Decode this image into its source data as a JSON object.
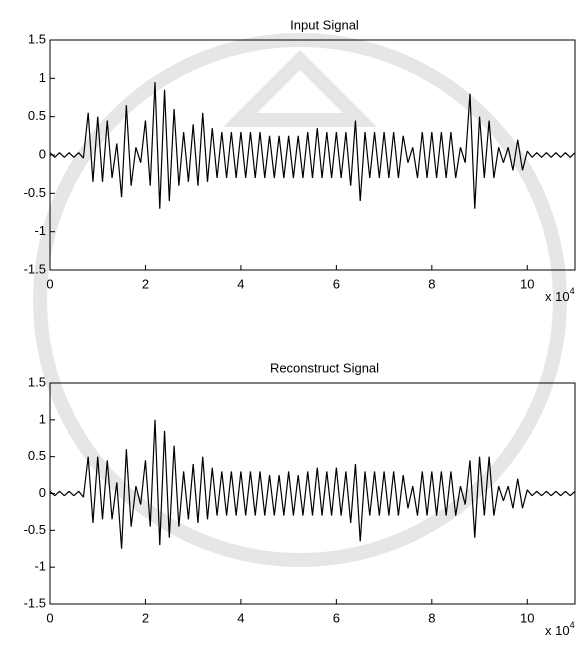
{
  "chart_data": [
    {
      "type": "line",
      "title": "Input Signal",
      "x": [
        0,
        0.1,
        0.2,
        0.3,
        0.4,
        0.5,
        0.6,
        0.7,
        0.8,
        0.9,
        1,
        1.1,
        1.2,
        1.3,
        1.4,
        1.5,
        1.6,
        1.7,
        1.8,
        1.9,
        2,
        2.1,
        2.2,
        2.3,
        2.4,
        2.5,
        2.6,
        2.7,
        2.8,
        2.9,
        3,
        3.1,
        3.2,
        3.3,
        3.4,
        3.5,
        3.6,
        3.7,
        3.8,
        3.9,
        4,
        4.1,
        4.2,
        4.3,
        4.4,
        4.5,
        4.6,
        4.7,
        4.8,
        4.9,
        5,
        5.1,
        5.2,
        5.3,
        5.4,
        5.5,
        5.6,
        5.7,
        5.8,
        5.9,
        6,
        6.1,
        6.2,
        6.3,
        6.4,
        6.5,
        6.6,
        6.7,
        6.8,
        6.9,
        7,
        7.1,
        7.2,
        7.3,
        7.4,
        7.5,
        7.6,
        7.7,
        7.8,
        7.9,
        8,
        8.1,
        8.2,
        8.3,
        8.4,
        8.5,
        8.6,
        8.7,
        8.8,
        8.9,
        9,
        9.1,
        9.2,
        9.3,
        9.4,
        9.5,
        9.6,
        9.7,
        9.8,
        9.9,
        10,
        10.1,
        10.2,
        10.3,
        10.4,
        10.5,
        10.6,
        10.7,
        10.8,
        10.9,
        11
      ],
      "series": [
        {
          "color": "#000000",
          "values": [
            0.03,
            -0.03,
            0.03,
            -0.03,
            0.03,
            -0.03,
            0.03,
            -0.04,
            0.55,
            -0.35,
            0.5,
            -0.35,
            0.45,
            -0.3,
            0.15,
            -0.55,
            0.65,
            -0.4,
            0.1,
            -0.1,
            0.45,
            -0.4,
            0.95,
            -0.7,
            0.85,
            -0.6,
            0.6,
            -0.4,
            0.3,
            -0.35,
            0.4,
            -0.4,
            0.55,
            -0.35,
            0.35,
            -0.3,
            0.3,
            -0.3,
            0.3,
            -0.3,
            0.3,
            -0.3,
            0.3,
            -0.3,
            0.3,
            -0.3,
            0.25,
            -0.3,
            0.25,
            -0.3,
            0.25,
            -0.3,
            0.25,
            -0.3,
            0.3,
            -0.3,
            0.35,
            -0.3,
            0.3,
            -0.3,
            0.3,
            -0.3,
            0.3,
            -0.4,
            0.45,
            -0.6,
            0.3,
            -0.3,
            0.3,
            -0.3,
            0.3,
            -0.3,
            0.3,
            -0.3,
            0.25,
            -0.1,
            0.1,
            -0.3,
            0.3,
            -0.3,
            0.3,
            -0.3,
            0.3,
            -0.3,
            0.3,
            -0.3,
            0.1,
            -0.1,
            0.8,
            -0.7,
            0.5,
            -0.3,
            0.45,
            -0.3,
            0.1,
            -0.1,
            0.1,
            -0.2,
            0.2,
            -0.2,
            0.05,
            -0.03,
            0.03,
            -0.03,
            0.03,
            -0.03,
            0.03,
            -0.03,
            0.03,
            -0.03,
            0.03
          ]
        }
      ],
      "xlim": [
        0,
        11
      ],
      "ylim": [
        -1.5,
        1.5
      ],
      "xticks": [
        0,
        2,
        4,
        6,
        8,
        10
      ],
      "yticks": [
        -1.5,
        -1,
        -0.5,
        0,
        0.5,
        1,
        1.5
      ],
      "x_multiplier": {
        "base": "x 10",
        "exponent": "4"
      }
    },
    {
      "type": "line",
      "title": "Reconstruct Signal",
      "x": [
        0,
        0.1,
        0.2,
        0.3,
        0.4,
        0.5,
        0.6,
        0.7,
        0.8,
        0.9,
        1,
        1.1,
        1.2,
        1.3,
        1.4,
        1.5,
        1.6,
        1.7,
        1.8,
        1.9,
        2,
        2.1,
        2.2,
        2.3,
        2.4,
        2.5,
        2.6,
        2.7,
        2.8,
        2.9,
        3,
        3.1,
        3.2,
        3.3,
        3.4,
        3.5,
        3.6,
        3.7,
        3.8,
        3.9,
        4,
        4.1,
        4.2,
        4.3,
        4.4,
        4.5,
        4.6,
        4.7,
        4.8,
        4.9,
        5,
        5.1,
        5.2,
        5.3,
        5.4,
        5.5,
        5.6,
        5.7,
        5.8,
        5.9,
        6,
        6.1,
        6.2,
        6.3,
        6.4,
        6.5,
        6.6,
        6.7,
        6.8,
        6.9,
        7,
        7.1,
        7.2,
        7.3,
        7.4,
        7.5,
        7.6,
        7.7,
        7.8,
        7.9,
        8,
        8.1,
        8.2,
        8.3,
        8.4,
        8.5,
        8.6,
        8.7,
        8.8,
        8.9,
        9,
        9.1,
        9.2,
        9.3,
        9.4,
        9.5,
        9.6,
        9.7,
        9.8,
        9.9,
        10,
        10.1,
        10.2,
        10.3,
        10.4,
        10.5,
        10.6,
        10.7,
        10.8,
        10.9,
        11
      ],
      "series": [
        {
          "color": "#000000",
          "values": [
            0.03,
            -0.03,
            0.03,
            -0.03,
            0.03,
            -0.03,
            0.03,
            -0.05,
            0.5,
            -0.4,
            0.5,
            -0.35,
            0.45,
            -0.35,
            0.15,
            -0.75,
            0.6,
            -0.45,
            0.1,
            -0.15,
            0.45,
            -0.45,
            1.0,
            -0.7,
            0.85,
            -0.6,
            0.65,
            -0.45,
            0.3,
            -0.35,
            0.4,
            -0.4,
            0.5,
            -0.35,
            0.35,
            -0.3,
            0.3,
            -0.3,
            0.3,
            -0.3,
            0.3,
            -0.3,
            0.3,
            -0.3,
            0.3,
            -0.3,
            0.25,
            -0.3,
            0.25,
            -0.3,
            0.3,
            -0.3,
            0.25,
            -0.3,
            0.3,
            -0.3,
            0.35,
            -0.3,
            0.3,
            -0.3,
            0.35,
            -0.3,
            0.3,
            -0.4,
            0.4,
            -0.65,
            0.3,
            -0.3,
            0.3,
            -0.3,
            0.3,
            -0.3,
            0.3,
            -0.3,
            0.25,
            -0.2,
            0.1,
            -0.3,
            0.3,
            -0.3,
            0.3,
            -0.3,
            0.3,
            -0.3,
            0.3,
            -0.3,
            0.1,
            -0.15,
            0.45,
            -0.6,
            0.5,
            -0.3,
            0.5,
            -0.3,
            0.1,
            -0.1,
            0.1,
            -0.2,
            0.2,
            -0.2,
            0.05,
            -0.03,
            0.03,
            -0.03,
            0.03,
            -0.03,
            0.03,
            -0.03,
            0.03,
            -0.03,
            0.03
          ]
        }
      ],
      "xlim": [
        0,
        11
      ],
      "ylim": [
        -1.5,
        1.5
      ],
      "xticks": [
        0,
        2,
        4,
        6,
        8,
        10
      ],
      "yticks": [
        -1.5,
        -1,
        -0.5,
        0,
        0.5,
        1,
        1.5
      ],
      "x_multiplier": {
        "base": "x 10",
        "exponent": "4"
      }
    }
  ]
}
